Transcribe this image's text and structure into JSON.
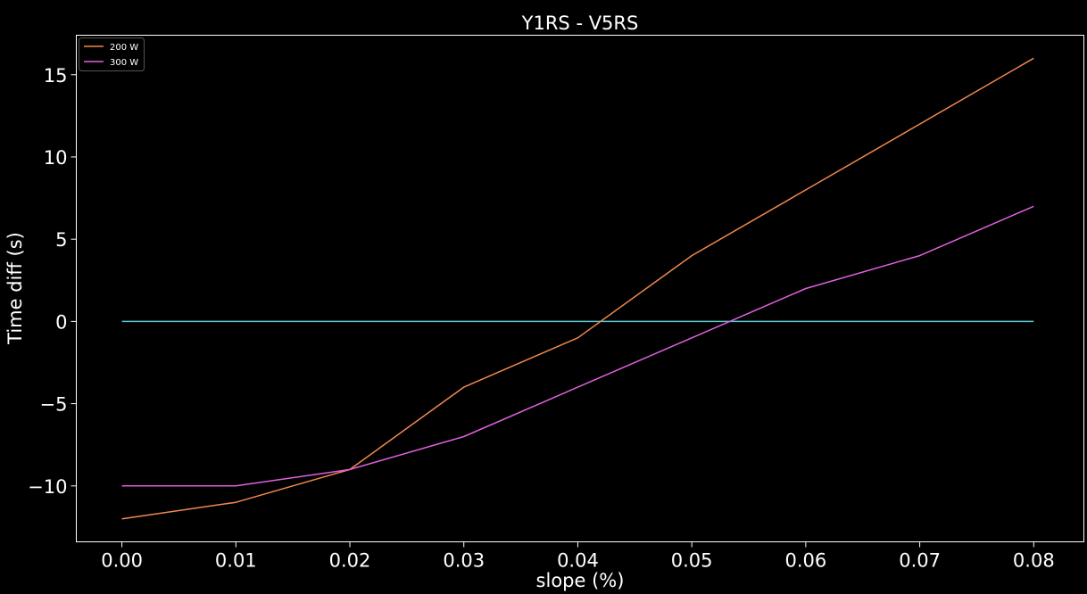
{
  "chart_data": {
    "type": "line",
    "title": "Y1RS - V5RS",
    "xlabel": "slope (%)",
    "ylabel": "Time diff (s)",
    "x": [
      0.0,
      0.01,
      0.02,
      0.03,
      0.04,
      0.05,
      0.06,
      0.07,
      0.08
    ],
    "xlim": [
      -0.004,
      0.0844
    ],
    "ylim": [
      -13.4,
      17.4
    ],
    "xticks": [
      0.0,
      0.01,
      0.02,
      0.03,
      0.04,
      0.05,
      0.06,
      0.07,
      0.08
    ],
    "xtick_labels": [
      "0.00",
      "0.01",
      "0.02",
      "0.03",
      "0.04",
      "0.05",
      "0.06",
      "0.07",
      "0.08"
    ],
    "yticks": [
      -10,
      -5,
      0,
      5,
      10,
      15
    ],
    "ytick_labels": [
      "−10",
      "−5",
      "0",
      "5",
      "10",
      "15"
    ],
    "series": [
      {
        "name": "200 W",
        "color": "#f2894e",
        "values": [
          -12,
          -11,
          -9,
          -4,
          -1,
          4,
          8,
          12,
          16
        ]
      },
      {
        "name": "300 W",
        "color": "#e060e0",
        "values": [
          -10,
          -10,
          -9,
          -7,
          -4,
          -1,
          2,
          4,
          7
        ]
      }
    ],
    "reference_line": {
      "color": "#5ec8d0",
      "values": [
        0,
        0,
        0,
        0,
        0,
        0,
        0,
        0,
        0
      ]
    },
    "legend_position": "top-left",
    "grid": false,
    "background": "#000000",
    "axis_color": "#ffffff"
  }
}
